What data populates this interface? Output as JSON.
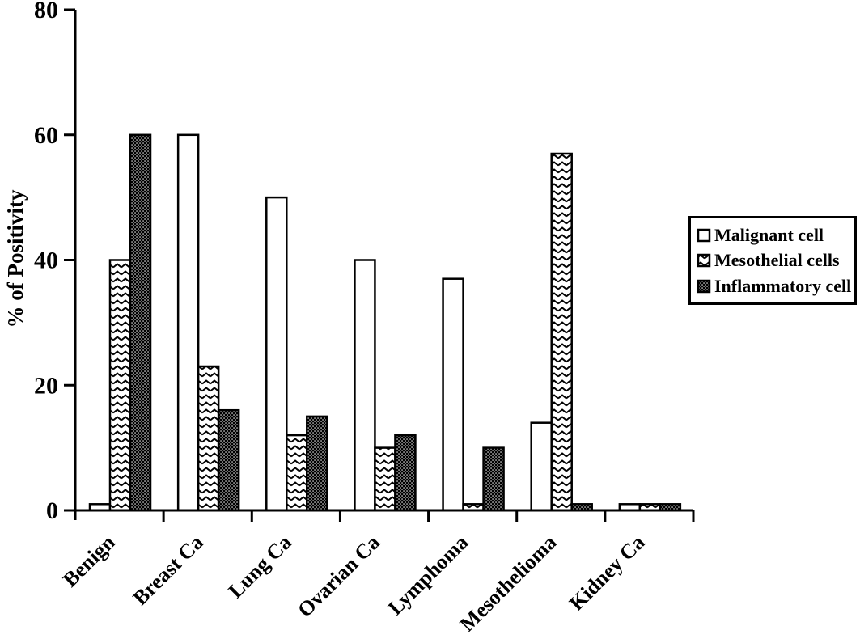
{
  "figure": {
    "background_color": "#ffffff",
    "ink_color": "#000000"
  },
  "chart_data": {
    "type": "bar",
    "title": "",
    "xlabel": "",
    "ylabel": "% of Positivity",
    "ylim": [
      0,
      80
    ],
    "yticks": [
      0,
      20,
      40,
      60,
      80
    ],
    "grid": false,
    "legend_position": "right",
    "categories": [
      "Benign",
      "Breast Ca",
      "Lung Ca",
      "Ovarian Ca",
      "Lymphoma",
      "Mesothelioma",
      "Kidney Ca"
    ],
    "series": [
      {
        "name": "Malignant cell",
        "fill": "plain-white",
        "values": [
          1,
          60,
          50,
          40,
          37,
          14,
          1
        ]
      },
      {
        "name": "Mesothelial cells",
        "fill": "zigzag",
        "values": [
          40,
          23,
          12,
          10,
          1,
          57,
          1
        ]
      },
      {
        "name": "Inflammatory cell",
        "fill": "dot-halftone",
        "values": [
          60,
          16,
          15,
          12,
          10,
          1,
          1
        ]
      }
    ]
  }
}
